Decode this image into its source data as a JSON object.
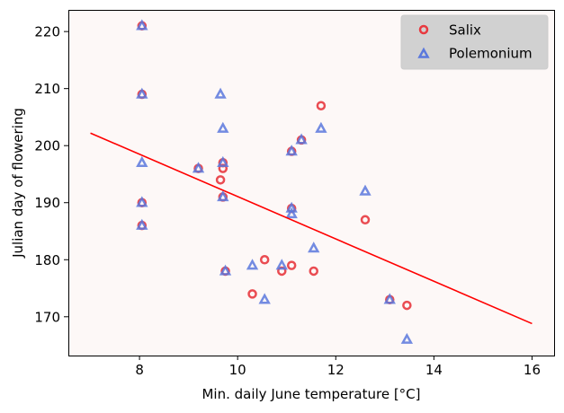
{
  "chart_data": {
    "type": "scatter",
    "xlabel": "Min. daily June temperature [°C]",
    "ylabel": "Julian day of flowering",
    "xlim": [
      6.55,
      16.45
    ],
    "ylim": [
      163.2,
      223.8
    ],
    "xticks": [
      8,
      10,
      12,
      14,
      16
    ],
    "yticks": [
      170,
      180,
      190,
      200,
      210,
      220
    ],
    "grid": false,
    "legend_position": "top-right",
    "plot_background": "#fdf8f7",
    "series": [
      {
        "name": "Salix",
        "marker": "circle",
        "color": "#e8393f",
        "points": [
          [
            8.05,
            221
          ],
          [
            8.05,
            209
          ],
          [
            8.05,
            190
          ],
          [
            8.05,
            186
          ],
          [
            9.2,
            196
          ],
          [
            9.65,
            194
          ],
          [
            9.7,
            197
          ],
          [
            9.7,
            196
          ],
          [
            9.7,
            191
          ],
          [
            9.75,
            178
          ],
          [
            10.3,
            174
          ],
          [
            10.55,
            180
          ],
          [
            10.9,
            178
          ],
          [
            11.1,
            199
          ],
          [
            11.1,
            189
          ],
          [
            11.1,
            179
          ],
          [
            11.3,
            201
          ],
          [
            11.55,
            178
          ],
          [
            11.7,
            207
          ],
          [
            12.6,
            187
          ],
          [
            13.1,
            173
          ],
          [
            13.45,
            172
          ]
        ]
      },
      {
        "name": "Polemonium",
        "marker": "triangle",
        "color": "#5a78dd",
        "points": [
          [
            8.05,
            221
          ],
          [
            8.05,
            209
          ],
          [
            8.05,
            197
          ],
          [
            8.05,
            190
          ],
          [
            8.05,
            186
          ],
          [
            9.2,
            196
          ],
          [
            9.65,
            209
          ],
          [
            9.7,
            203
          ],
          [
            9.7,
            197
          ],
          [
            9.7,
            191
          ],
          [
            9.75,
            178
          ],
          [
            10.3,
            179
          ],
          [
            10.55,
            173
          ],
          [
            10.9,
            179
          ],
          [
            11.1,
            199
          ],
          [
            11.1,
            189
          ],
          [
            11.1,
            188
          ],
          [
            11.3,
            201
          ],
          [
            11.55,
            182
          ],
          [
            11.7,
            203
          ],
          [
            12.6,
            192
          ],
          [
            13.1,
            173
          ],
          [
            13.45,
            166
          ]
        ]
      }
    ],
    "trend_line": {
      "color": "#ff0000",
      "x": [
        7.0,
        16.0
      ],
      "y": [
        202.2,
        168.8
      ]
    }
  }
}
